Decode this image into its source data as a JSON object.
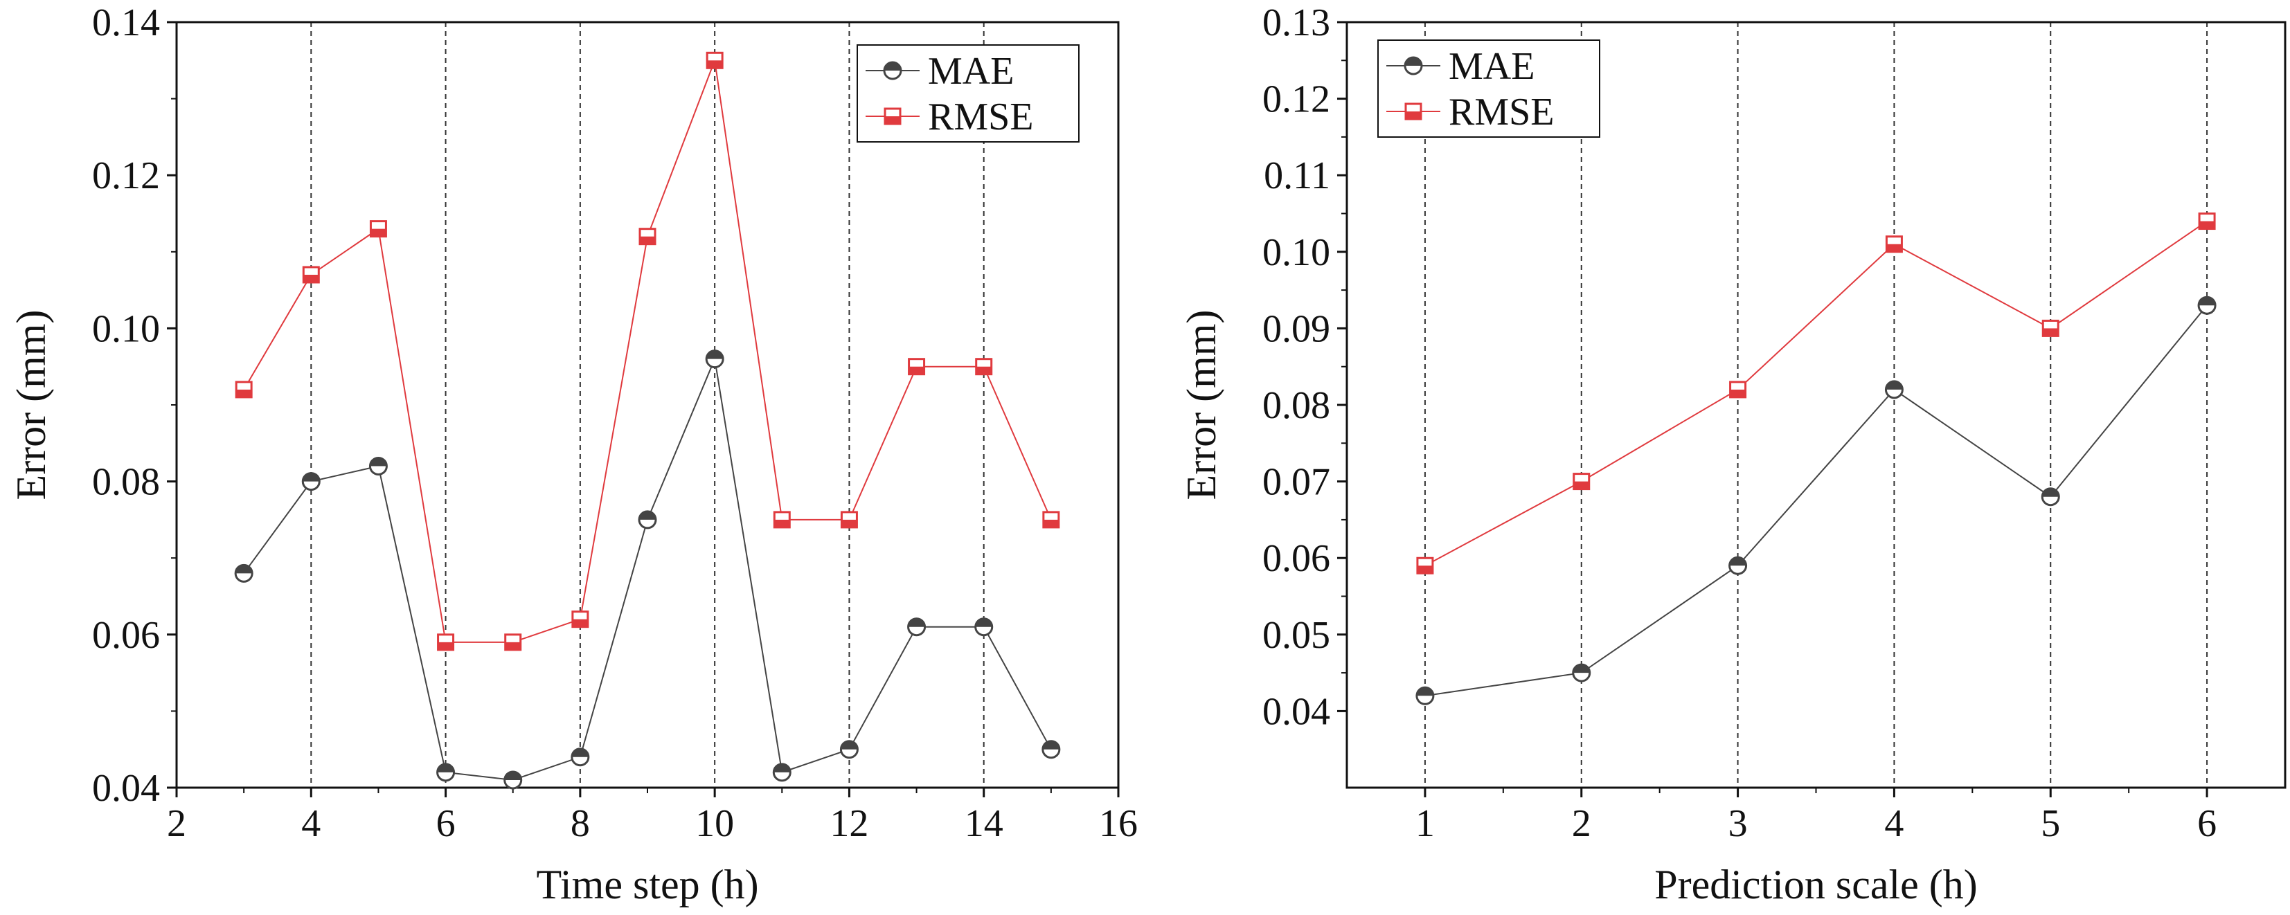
{
  "chart_data": [
    {
      "type": "line",
      "title": "",
      "xlabel": "Time step (h)",
      "ylabel": "Error (mm)",
      "xlim": [
        2,
        16
      ],
      "ylim": [
        0.04,
        0.14
      ],
      "xticks": [
        2,
        4,
        6,
        8,
        10,
        12,
        14,
        16
      ],
      "xtick_labels": [
        "2",
        "4",
        "6",
        "8",
        "10",
        "12",
        "14",
        "16"
      ],
      "yticks": [
        0.04,
        0.06,
        0.08,
        0.1,
        0.12,
        0.14
      ],
      "ytick_labels": [
        "0.04",
        "0.06",
        "0.08",
        "0.10",
        "0.12",
        "0.14"
      ],
      "grid_x": [
        4,
        6,
        8,
        10,
        12,
        14
      ],
      "legend_position": "top-right",
      "x": [
        3,
        4,
        5,
        6,
        7,
        8,
        9,
        10,
        11,
        12,
        13,
        14,
        15
      ],
      "series": [
        {
          "name": "MAE",
          "marker": "half-circle",
          "color": "#444444",
          "values": [
            0.068,
            0.08,
            0.082,
            0.042,
            0.041,
            0.044,
            0.075,
            0.096,
            0.042,
            0.045,
            0.061,
            0.061,
            0.045
          ]
        },
        {
          "name": "RMSE",
          "marker": "half-square",
          "color": "#e03a3e",
          "values": [
            0.092,
            0.107,
            0.113,
            0.059,
            0.059,
            0.062,
            0.112,
            0.135,
            0.075,
            0.075,
            0.095,
            0.095,
            0.075
          ]
        }
      ]
    },
    {
      "type": "line",
      "title": "",
      "xlabel": "Prediction scale (h)",
      "ylabel": "Error (mm)",
      "xlim": [
        0.5,
        6.5
      ],
      "ylim": [
        0.03,
        0.13
      ],
      "xticks": [
        1,
        2,
        3,
        4,
        5,
        6
      ],
      "xtick_labels": [
        "1",
        "2",
        "3",
        "4",
        "5",
        "6"
      ],
      "yticks": [
        0.04,
        0.05,
        0.06,
        0.07,
        0.08,
        0.09,
        0.1,
        0.11,
        0.12,
        0.13
      ],
      "ytick_labels": [
        "0.04",
        "0.05",
        "0.06",
        "0.07",
        "0.08",
        "0.09",
        "0.10",
        "0.11",
        "0.12",
        "0.13"
      ],
      "grid_x": [
        1,
        2,
        3,
        4,
        5,
        6
      ],
      "legend_position": "top-left",
      "x": [
        1,
        2,
        3,
        4,
        5,
        6
      ],
      "series": [
        {
          "name": "MAE",
          "marker": "half-circle",
          "color": "#444444",
          "values": [
            0.042,
            0.045,
            0.059,
            0.082,
            0.068,
            0.093
          ]
        },
        {
          "name": "RMSE",
          "marker": "half-square",
          "color": "#e03a3e",
          "values": [
            0.059,
            0.07,
            0.082,
            0.101,
            0.09,
            0.104
          ]
        }
      ]
    }
  ]
}
